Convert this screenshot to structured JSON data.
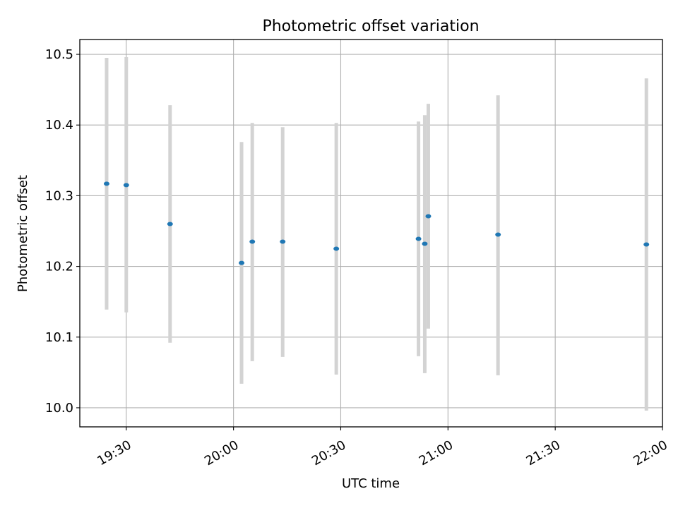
{
  "chart_data": {
    "type": "scatter",
    "title": "Photometric offset variation",
    "xlabel": "UTC time",
    "ylabel": "Photometric offset",
    "x_ticks": [
      "19:30",
      "20:00",
      "20:30",
      "21:00",
      "21:30",
      "22:00"
    ],
    "x_tick_minutes": [
      1170,
      1200,
      1230,
      1260,
      1290,
      1320
    ],
    "xlim": [
      "19:17",
      "22:00"
    ],
    "ylim": [
      9.973,
      10.521
    ],
    "y_ticks": [
      10.0,
      10.1,
      10.2,
      10.3,
      10.4,
      10.5
    ],
    "y_tick_labels": [
      "10.0",
      "10.1",
      "10.2",
      "10.3",
      "10.4",
      "10.5"
    ],
    "grid": true,
    "marker_color": "#1f77b4",
    "errorbar_color": "#d3d3d3",
    "points": [
      {
        "time": "19:24:30",
        "y": 10.317,
        "low": 10.139,
        "high": 10.495
      },
      {
        "time": "19:30:00",
        "y": 10.315,
        "low": 10.135,
        "high": 10.496
      },
      {
        "time": "19:42:15",
        "y": 10.26,
        "low": 10.092,
        "high": 10.428
      },
      {
        "time": "20:02:15",
        "y": 10.205,
        "low": 10.034,
        "high": 10.376
      },
      {
        "time": "20:05:15",
        "y": 10.235,
        "low": 10.066,
        "high": 10.403
      },
      {
        "time": "20:13:45",
        "y": 10.235,
        "low": 10.072,
        "high": 10.397
      },
      {
        "time": "20:28:45",
        "y": 10.225,
        "low": 10.047,
        "high": 10.403
      },
      {
        "time": "20:51:45",
        "y": 10.239,
        "low": 10.073,
        "high": 10.405
      },
      {
        "time": "20:53:30",
        "y": 10.232,
        "low": 10.049,
        "high": 10.414
      },
      {
        "time": "20:54:30",
        "y": 10.271,
        "low": 10.112,
        "high": 10.43
      },
      {
        "time": "21:14:00",
        "y": 10.245,
        "low": 10.046,
        "high": 10.442
      },
      {
        "time": "21:55:30",
        "y": 10.231,
        "low": 9.996,
        "high": 10.466
      }
    ]
  }
}
